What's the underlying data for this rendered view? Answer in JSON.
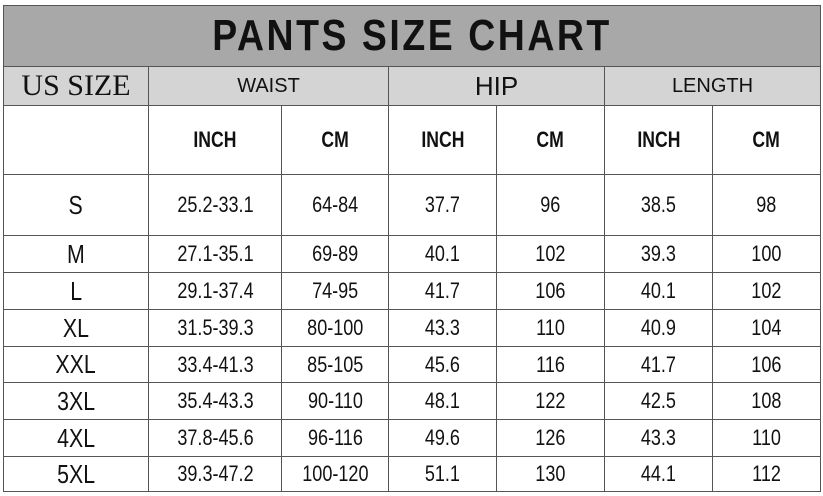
{
  "title": "PANTS SIZE CHART",
  "headers": {
    "us_size": "US SIZE",
    "waist": "WAIST",
    "hip": "HIP",
    "length": "LENGTH"
  },
  "subheaders": [
    "INCH",
    "CM",
    "INCH",
    "CM",
    "INCH",
    "CM"
  ],
  "rows": [
    [
      "S",
      "25.2-33.1",
      "64-84",
      "37.7",
      "96",
      "38.5",
      "98"
    ],
    [
      "M",
      "27.1-35.1",
      "69-89",
      "40.1",
      "102",
      "39.3",
      "100"
    ],
    [
      "L",
      "29.1-37.4",
      "74-95",
      "41.7",
      "106",
      "40.1",
      "102"
    ],
    [
      "XL",
      "31.5-39.3",
      "80-100",
      "43.3",
      "110",
      "40.9",
      "104"
    ],
    [
      "XXL",
      "33.4-41.3",
      "85-105",
      "45.6",
      "116",
      "41.7",
      "106"
    ],
    [
      "3XL",
      "35.4-43.3",
      "90-110",
      "48.1",
      "122",
      "42.5",
      "108"
    ],
    [
      "4XL",
      "37.8-45.6",
      "96-116",
      "49.6",
      "126",
      "43.3",
      "110"
    ],
    [
      "5XL",
      "39.3-47.2",
      "100-120",
      "51.1",
      "130",
      "44.1",
      "112"
    ]
  ],
  "colors": {
    "title_bg": "#a8a8a8",
    "header_bg": "#d4d4d4",
    "border": "#555555"
  }
}
